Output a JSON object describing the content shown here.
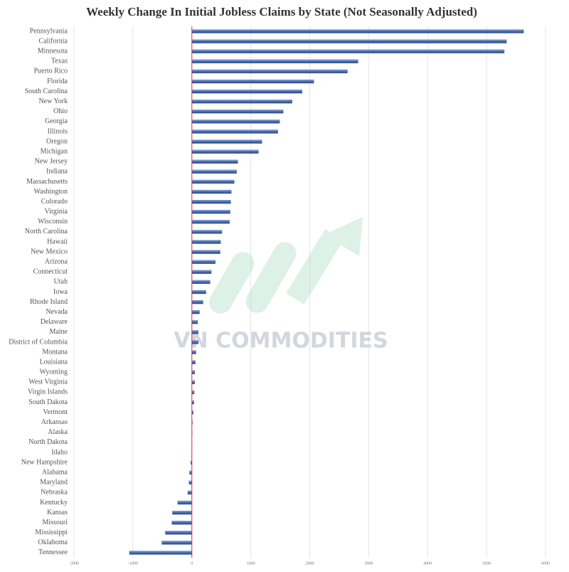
{
  "chart_data": {
    "type": "barh",
    "title": "Weekly Change In Initial Jobless Claims by State (Not Seasonally Adjusted)",
    "watermark": "VN COMMODITIES",
    "categories": [
      "Pennsylvania",
      "California",
      "Minnesota",
      "Texas",
      "Puerto Rico",
      "Florida",
      "South Carolina",
      "New York",
      "Ohio",
      "Georgia",
      "Illinois",
      "Oregon",
      "Michigan",
      "New Jersey",
      "Indiana",
      "Massachusetts",
      "Washington",
      "Colorado",
      "Virginia",
      "Wisconsin",
      "North Carolina",
      "Hawaii",
      "New Mexico",
      "Arizona",
      "Connecticut",
      "Utah",
      "Iowa",
      "Rhode Island",
      "Nevada",
      "Delaware",
      "Maine",
      "District of Columbia",
      "Montana",
      "Louisiana",
      "Wyoming",
      "West Virginia",
      "Virgin Islands",
      "South Dakota",
      "Vermont",
      "Arkansas",
      "Alaska",
      "North Dakota",
      "Idaho",
      "New Hampshire",
      "Alabama",
      "Maryland",
      "Nebraska",
      "Kentucky",
      "Kansas",
      "Missouri",
      "Mississippi",
      "Oklahoma",
      "Tennessee"
    ],
    "values": [
      5630,
      5340,
      5300,
      2820,
      2640,
      2070,
      1870,
      1700,
      1550,
      1490,
      1460,
      1190,
      1130,
      780,
      760,
      720,
      670,
      660,
      650,
      640,
      510,
      490,
      480,
      400,
      330,
      310,
      240,
      190,
      130,
      100,
      110,
      110,
      70,
      60,
      50,
      50,
      40,
      35,
      25,
      10,
      5,
      3,
      2,
      -20,
      -40,
      -50,
      -70,
      -240,
      -330,
      -340,
      -450,
      -510,
      -1060
    ],
    "color": "#4a6cae",
    "zero_line_color": "#d9363e",
    "xlim": [
      -2000,
      6000
    ],
    "xticks": [
      -2000,
      -1000,
      0,
      1000,
      2000,
      3000,
      4000,
      5000,
      6000
    ],
    "grid": true
  }
}
